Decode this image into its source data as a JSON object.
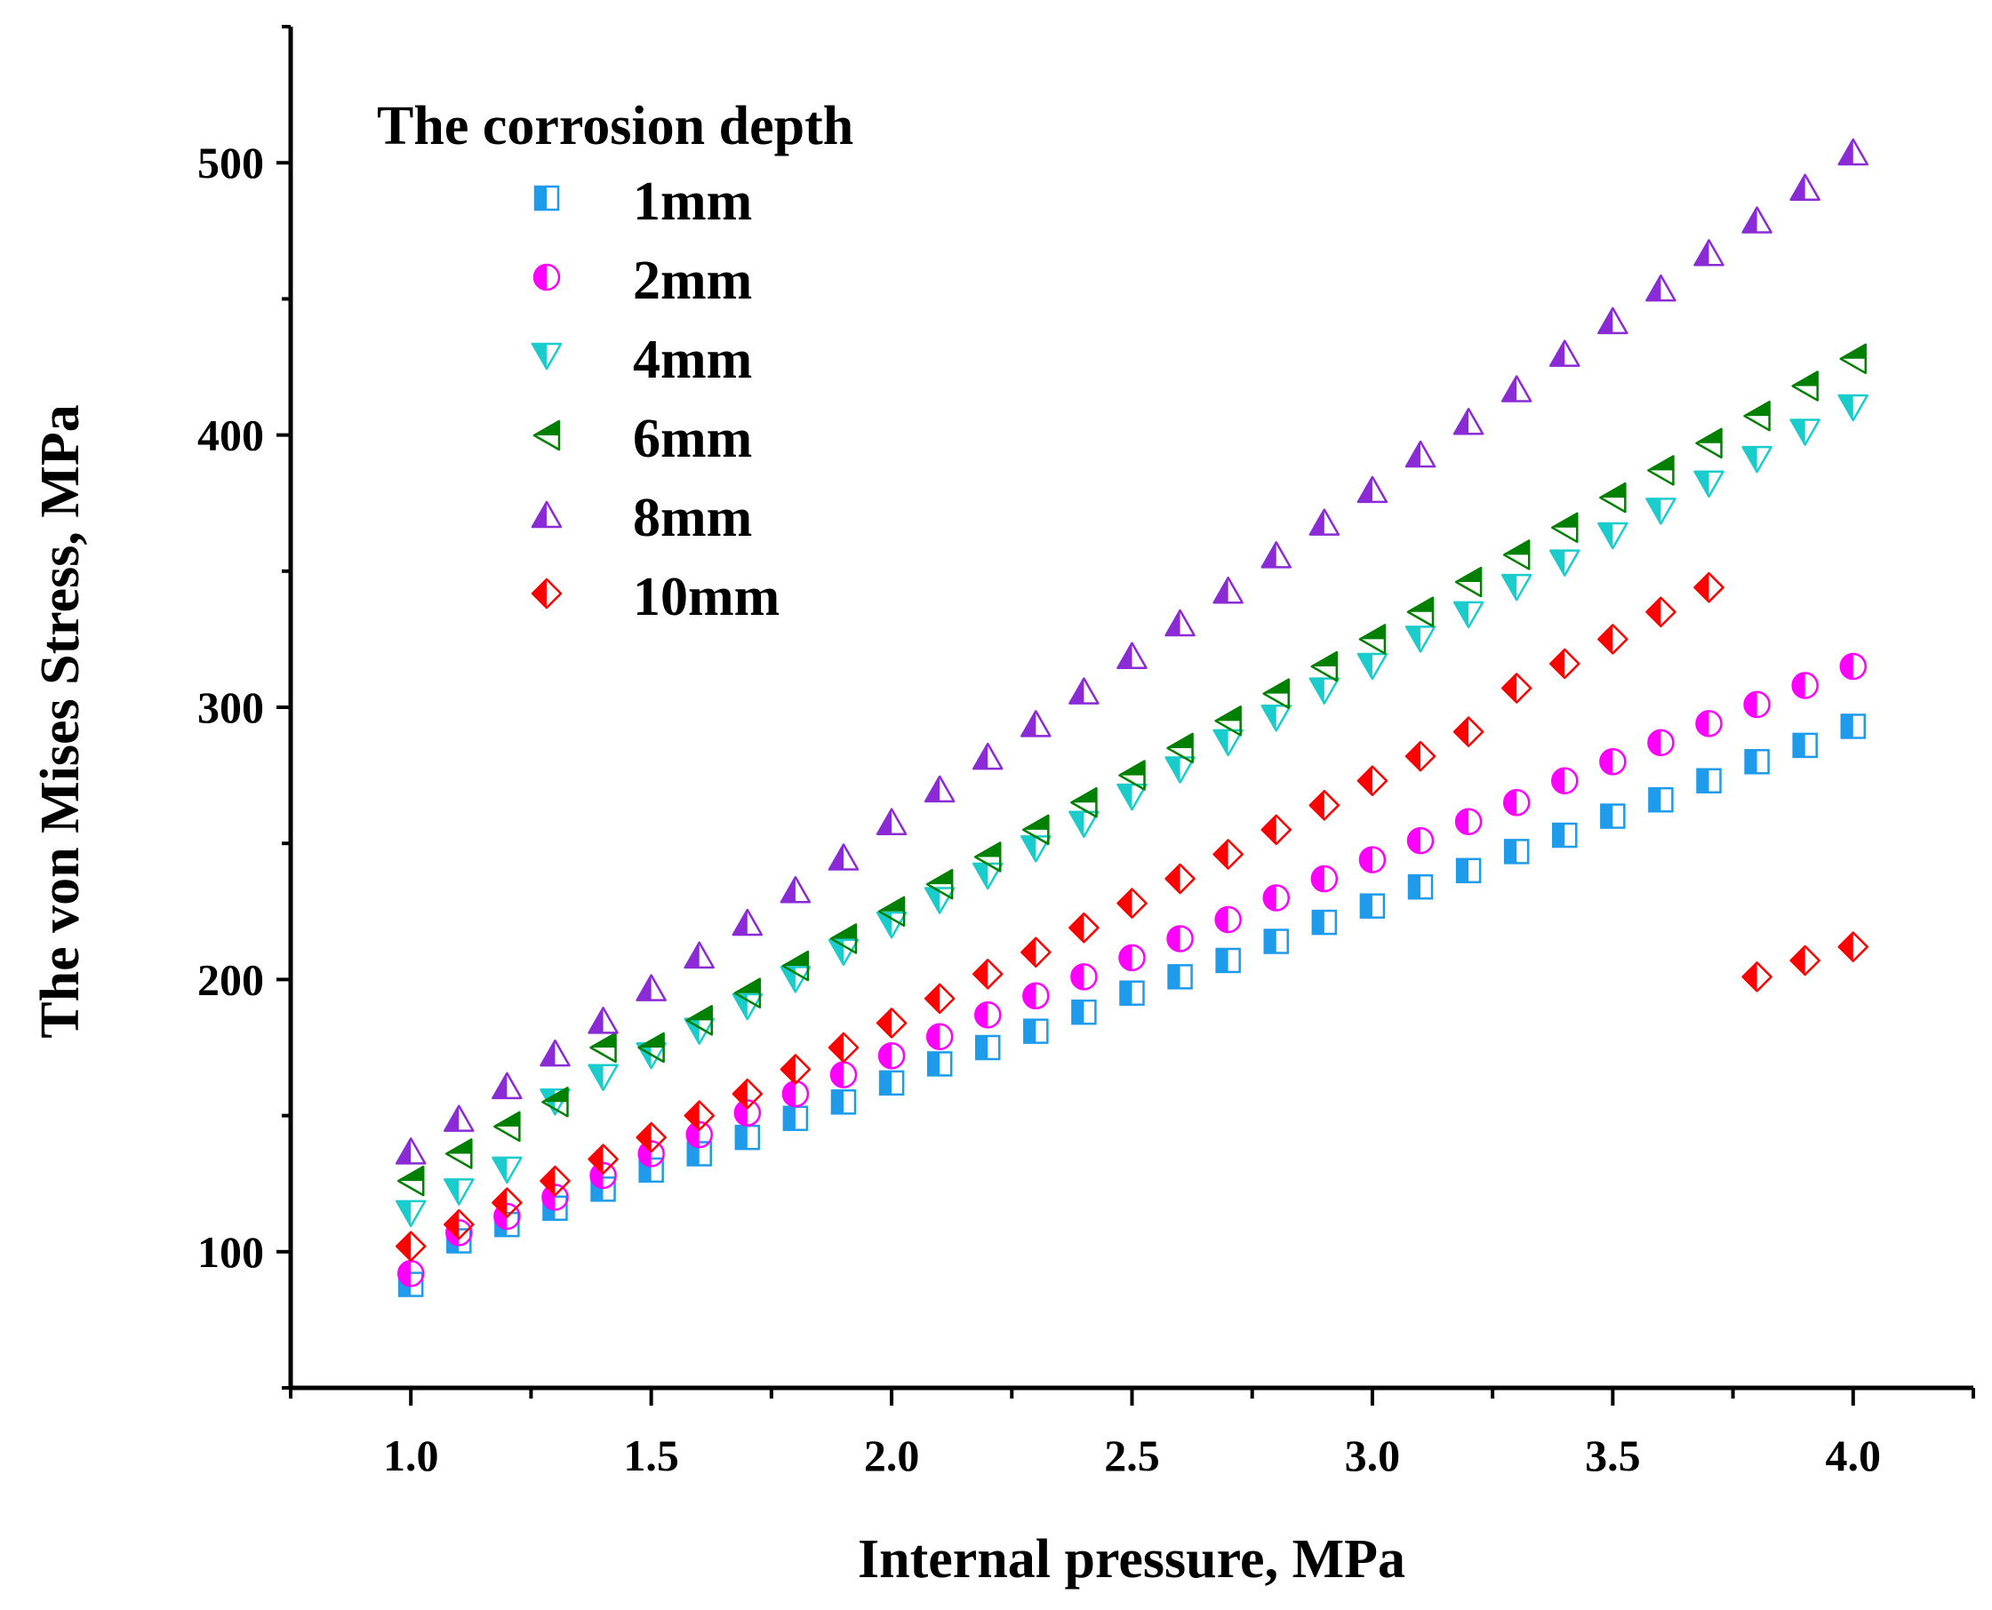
{
  "chart_data": {
    "type": "scatter",
    "title": "",
    "xlabel": "Internal pressure, MPa",
    "ylabel": "The von Mises Stress, MPa",
    "xlim": [
      0.75,
      4.25
    ],
    "ylim": [
      50,
      550
    ],
    "xticks": [
      1.0,
      1.5,
      2.0,
      2.5,
      3.0,
      3.5,
      4.0
    ],
    "xtick_labels": [
      "1.0",
      "1.5",
      "2.0",
      "2.5",
      "3.0",
      "3.5",
      "4.0"
    ],
    "yticks": [
      100,
      200,
      300,
      400,
      500
    ],
    "ytick_labels": [
      "100",
      "200",
      "300",
      "400",
      "500"
    ],
    "grid": false,
    "legend": {
      "title": "The corrosion depth",
      "position": "top-left"
    },
    "x": [
      1.0,
      1.1,
      1.2,
      1.3,
      1.4,
      1.5,
      1.6,
      1.7,
      1.8,
      1.9,
      2.0,
      2.1,
      2.2,
      2.3,
      2.4,
      2.5,
      2.6,
      2.7,
      2.8,
      2.9,
      3.0,
      3.1,
      3.2,
      3.3,
      3.4,
      3.5,
      3.6,
      3.7,
      3.8,
      3.9,
      4.0
    ],
    "series": [
      {
        "name": "1mm",
        "marker": "square",
        "color": "#1E9BEB",
        "values": [
          88,
          104,
          110,
          116,
          123,
          130,
          136,
          142,
          149,
          155,
          162,
          169,
          175,
          181,
          188,
          195,
          201,
          207,
          214,
          221,
          227,
          234,
          240,
          247,
          253,
          260,
          266,
          273,
          280,
          286,
          293
        ]
      },
      {
        "name": "2mm",
        "marker": "circle",
        "color": "#FF00FF",
        "values": [
          92,
          107,
          113,
          120,
          128,
          136,
          143,
          151,
          158,
          165,
          172,
          179,
          187,
          194,
          201,
          208,
          215,
          222,
          230,
          237,
          244,
          251,
          258,
          265,
          273,
          280,
          287,
          294,
          301,
          308,
          315
        ]
      },
      {
        "name": "4mm",
        "marker": "triangle-down",
        "color": "#1ACCCC",
        "values": [
          114,
          122,
          130,
          155,
          164,
          172,
          181,
          190,
          200,
          210,
          220,
          229,
          238,
          248,
          257,
          267,
          277,
          287,
          296,
          306,
          315,
          325,
          334,
          344,
          353,
          363,
          372,
          382,
          391,
          401,
          410
        ]
      },
      {
        "name": "6mm",
        "marker": "triangle-left",
        "color": "#008000",
        "values": [
          126,
          136,
          146,
          155,
          175,
          175,
          185,
          195,
          205,
          215,
          225,
          235,
          245,
          255,
          265,
          275,
          285,
          295,
          305,
          315,
          325,
          335,
          346,
          356,
          366,
          377,
          387,
          397,
          407,
          418,
          428
        ]
      },
      {
        "name": "8mm",
        "marker": "triangle-up",
        "color": "#8A2BD6",
        "values": [
          137,
          149,
          161,
          173,
          185,
          197,
          209,
          221,
          233,
          245,
          258,
          270,
          282,
          294,
          306,
          319,
          331,
          343,
          356,
          368,
          380,
          393,
          405,
          417,
          430,
          442,
          454,
          467,
          479,
          491,
          504
        ]
      },
      {
        "name": "10mm",
        "marker": "diamond",
        "color": "#FF0000",
        "values": [
          102,
          110,
          118,
          126,
          134,
          142,
          150,
          158,
          167,
          175,
          184,
          193,
          202,
          210,
          219,
          228,
          237,
          246,
          255,
          264,
          273,
          282,
          291,
          307,
          316,
          325,
          335,
          344,
          201,
          207,
          212
        ]
      }
    ]
  }
}
